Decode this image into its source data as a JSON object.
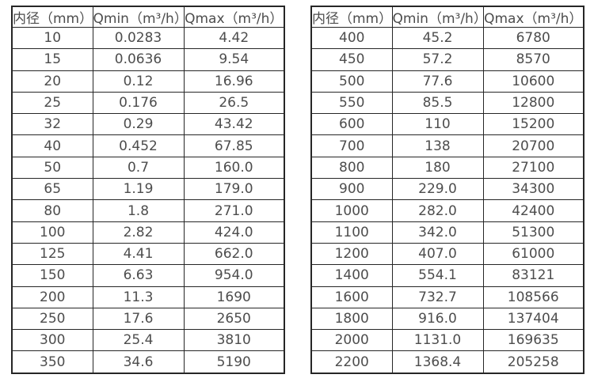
{
  "page": {
    "background_color": "#ffffff",
    "text_color": "#4d4d4d",
    "border_color": "#262626"
  },
  "tables": [
    {
      "name": "small-diameters",
      "headers": [
        "内径（mm）",
        "Qmin（m³/h）",
        "Qmax（m³/h）"
      ],
      "rows": [
        [
          "10",
          "0.0283",
          "4.42"
        ],
        [
          "15",
          "0.0636",
          "9.54"
        ],
        [
          "20",
          "0.12",
          "16.96"
        ],
        [
          "25",
          "0.176",
          "26.5"
        ],
        [
          "32",
          "0.29",
          "43.42"
        ],
        [
          "40",
          "0.452",
          "67.85"
        ],
        [
          "50",
          "0.7",
          "160.0"
        ],
        [
          "65",
          "1.19",
          "179.0"
        ],
        [
          "80",
          "1.8",
          "271.0"
        ],
        [
          "100",
          "2.82",
          "424.0"
        ],
        [
          "125",
          "4.41",
          "662.0"
        ],
        [
          "150",
          "6.63",
          "954.0"
        ],
        [
          "200",
          "11.3",
          "1690"
        ],
        [
          "250",
          "17.6",
          "2650"
        ],
        [
          "300",
          "25.4",
          "3810"
        ],
        [
          "350",
          "34.6",
          "5190"
        ]
      ]
    },
    {
      "name": "large-diameters",
      "headers": [
        "内径（mm）",
        "Qmin（m³/h）",
        "Qmax（m³/h）"
      ],
      "rows": [
        [
          "400",
          "45.2",
          "6780"
        ],
        [
          "450",
          "57.2",
          "8570"
        ],
        [
          "500",
          "77.6",
          "10600"
        ],
        [
          "550",
          "85.5",
          "12800"
        ],
        [
          "600",
          "110",
          "15200"
        ],
        [
          "700",
          "138",
          "20700"
        ],
        [
          "800",
          "180",
          "27100"
        ],
        [
          "900",
          "229.0",
          "34300"
        ],
        [
          "1000",
          "282.0",
          "42400"
        ],
        [
          "1100",
          "342.0",
          "51300"
        ],
        [
          "1200",
          "407.0",
          "61000"
        ],
        [
          "1400",
          "554.1",
          "83121"
        ],
        [
          "1600",
          "732.7",
          "108566"
        ],
        [
          "1800",
          "916.0",
          "137404"
        ],
        [
          "2000",
          "1131.0",
          "169635"
        ],
        [
          "2200",
          "1368.4",
          "205258"
        ]
      ]
    }
  ]
}
